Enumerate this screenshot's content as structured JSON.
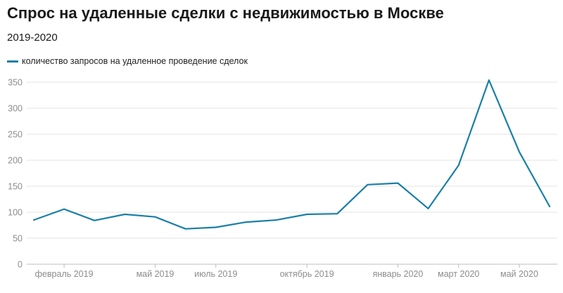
{
  "title": "Спрос на удаленные сделки с недвижимостью в Москве",
  "subtitle": "2019-2020",
  "chart_data": {
    "type": "line",
    "title": "Спрос на удаленные сделки с недвижимостью в Москве",
    "subtitle": "2019-2020",
    "x": [
      "2019-01",
      "2019-02",
      "2019-03",
      "2019-04",
      "2019-05",
      "2019-06",
      "2019-07",
      "2019-08",
      "2019-09",
      "2019-10",
      "2019-11",
      "2019-12",
      "2020-01",
      "2020-02",
      "2020-03",
      "2020-04",
      "2020-05",
      "2020-06"
    ],
    "x_tick_labels": [
      "февраль 2019",
      "май 2019",
      "июль 2019",
      "октябрь 2019",
      "январь 2020",
      "март 2020",
      "май 2020"
    ],
    "x_tick_months": [
      "2019-02",
      "2019-05",
      "2019-07",
      "2019-10",
      "2020-01",
      "2020-03",
      "2020-05"
    ],
    "series": [
      {
        "name": "количество запросов на удаленное проведение сделок",
        "color": "#1a7fa8",
        "values": [
          85,
          106,
          84,
          96,
          91,
          68,
          71,
          81,
          85,
          96,
          97,
          153,
          156,
          107,
          190,
          354,
          216,
          111
        ]
      }
    ],
    "ylim": [
      0,
      350
    ],
    "y_ticks": [
      0,
      50,
      100,
      150,
      200,
      250,
      300,
      350
    ],
    "grid": true,
    "legend": "top-left"
  }
}
